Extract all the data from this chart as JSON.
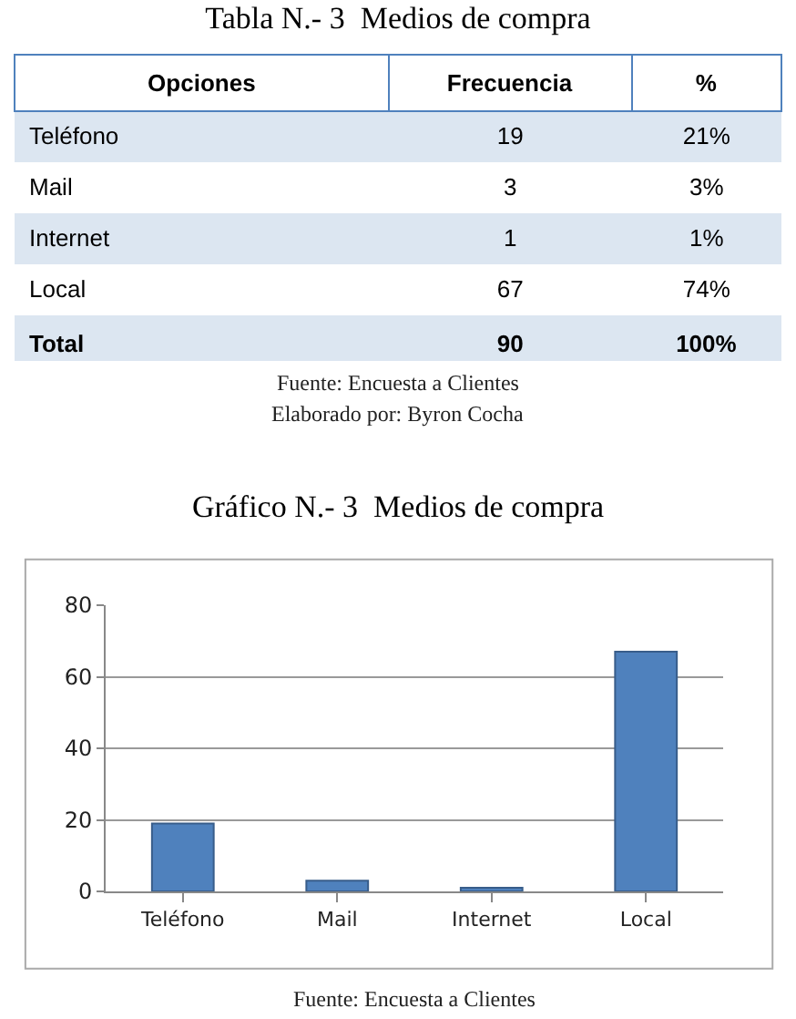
{
  "chart_data": [
    {
      "type": "other",
      "title": "Tabla N.- 3  Medios de compra",
      "xlabel": "Opciones",
      "categories": [
        "Teléfono",
        "Mail",
        "Internet",
        "Local",
        "Total"
      ],
      "series": [
        {
          "name": "Frecuencia",
          "values": [
            19,
            3,
            1,
            67,
            90
          ],
          "colors": [
            "#dce6f1",
            "#ffffff",
            "#dce6f1",
            "#ffffff",
            "#dce6f1"
          ]
        },
        {
          "name": "%",
          "values": [
            21,
            3,
            1,
            74,
            100
          ],
          "value_labels": [
            "21%",
            "3%",
            "1%",
            "74%",
            "100%"
          ],
          "colors": [
            "#dce6f1",
            "#ffffff",
            "#dce6f1",
            "#ffffff",
            "#dce6f1"
          ]
        }
      ],
      "data_labels": true,
      "annotations": [
        "Fuente: Encuesta a Clientes",
        "Elaborado por: Byron Cocha"
      ]
    },
    {
      "type": "bar",
      "title": "Gráfico N.- 3  Medios de compra",
      "categories": [
        "Teléfono",
        "Mail",
        "Internet",
        "Local"
      ],
      "values": [
        19,
        3,
        1,
        67
      ],
      "color": "#4f81bd",
      "ylim": [
        0,
        80
      ],
      "yticks": [
        0,
        20,
        40,
        60,
        80
      ],
      "grid": "y",
      "annotations": [
        "Fuente: Encuesta a Clientes"
      ]
    }
  ]
}
